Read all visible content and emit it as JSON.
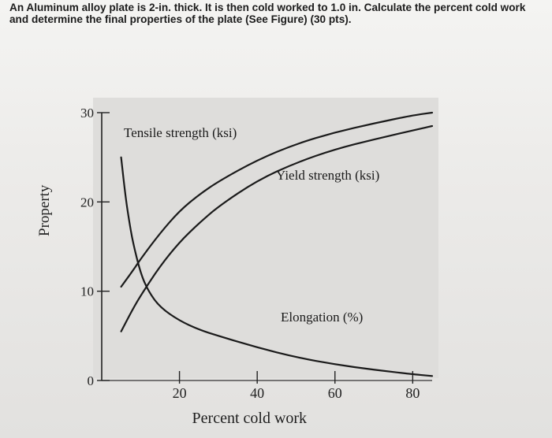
{
  "question": {
    "text": "An Aluminum alloy plate is 2-in. thick. It is then cold worked to 1.0 in. Calculate the percent cold work and determine the final properties of the plate (See Figure) (30 pts)."
  },
  "chart_data": {
    "type": "line",
    "xlabel": "Percent cold work",
    "ylabel": "Property",
    "xlim": [
      0,
      85
    ],
    "ylim": [
      0,
      30
    ],
    "x_ticks": [
      20,
      40,
      60,
      80
    ],
    "x_tick_labels": [
      "20",
      "40",
      "60",
      "80"
    ],
    "y_ticks": [
      0,
      10,
      20,
      30
    ],
    "y_tick_labels": [
      "0",
      "10",
      "20",
      "30"
    ],
    "grid": false,
    "series": [
      {
        "name": "Tensile strength (ksi)",
        "x": [
          5,
          8,
          10,
          15,
          20,
          25,
          30,
          40,
          50,
          60,
          70,
          80,
          85
        ],
        "y": [
          10.5,
          12.3,
          13.6,
          16.5,
          19,
          20.8,
          22.3,
          24.7,
          26.5,
          27.8,
          28.8,
          29.7,
          30
        ]
      },
      {
        "name": "Yield strength (ksi)",
        "x": [
          5,
          8,
          10,
          15,
          20,
          25,
          30,
          40,
          50,
          60,
          70,
          80,
          85
        ],
        "y": [
          5.5,
          8,
          9.5,
          12.8,
          15.5,
          17.6,
          19.5,
          22.4,
          24.4,
          25.9,
          27,
          28,
          28.5
        ]
      },
      {
        "name": "Elongation (%)",
        "x": [
          5,
          6,
          7,
          8,
          10,
          12,
          15,
          20,
          25,
          30,
          40,
          50,
          60,
          70,
          80,
          85
        ],
        "y": [
          25,
          21,
          18,
          15.5,
          12,
          10,
          8.2,
          6.7,
          5.7,
          5,
          3.7,
          2.6,
          1.8,
          1.2,
          0.7,
          0.5
        ]
      }
    ]
  }
}
